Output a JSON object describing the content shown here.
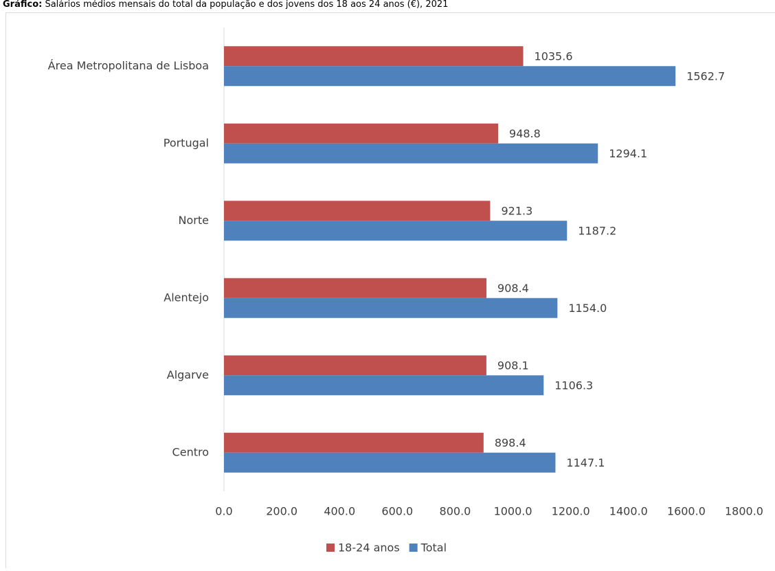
{
  "chart_data": {
    "type": "hbar",
    "title_prefix": "Gráfico:",
    "title": "Salários médios mensais do total da população e dos jovens dos 18 aos 24 anos (€), 2021",
    "categories": [
      "Área Metropolitana de Lisboa",
      "Portugal",
      "Norte",
      "Alentejo",
      "Algarve",
      "Centro"
    ],
    "series": [
      {
        "name": "18-24 anos",
        "color": "#c0504d",
        "values": [
          1035.6,
          948.8,
          921.3,
          908.4,
          908.1,
          898.4
        ],
        "value_labels": [
          "1035.6",
          "948.8",
          "921.3",
          "908.4",
          "908.1",
          "898.4"
        ]
      },
      {
        "name": "Total",
        "color": "#4f81bd",
        "values": [
          1562.7,
          1294.1,
          1187.2,
          1154.0,
          1106.3,
          1147.1
        ],
        "value_labels": [
          "1562.7",
          "1294.1",
          "1187.2",
          "1154.0",
          "1106.3",
          "1147.1"
        ]
      }
    ],
    "xlim": [
      0,
      1800
    ],
    "xticks": [
      {
        "value": 0,
        "label": "0.0"
      },
      {
        "value": 200,
        "label": "200.0"
      },
      {
        "value": 400,
        "label": "400.0"
      },
      {
        "value": 600,
        "label": "600.0"
      },
      {
        "value": 800,
        "label": "800.0"
      },
      {
        "value": 1000,
        "label": "1000.0"
      },
      {
        "value": 1200,
        "label": "1200.0"
      },
      {
        "value": 1400,
        "label": "1400.0"
      },
      {
        "value": 1600,
        "label": "1600.0"
      },
      {
        "value": 1800,
        "label": "1800.0"
      }
    ],
    "grid": false,
    "legend": "bottom"
  }
}
